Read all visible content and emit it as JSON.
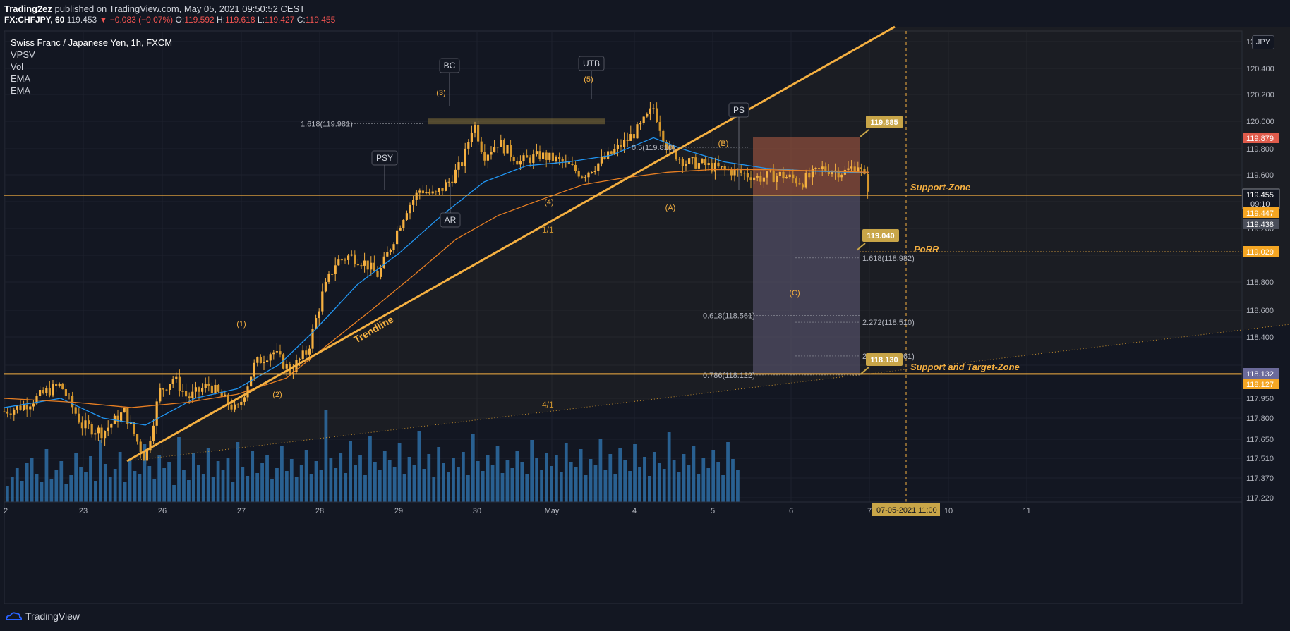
{
  "header": {
    "publisher": "Trading2ez",
    "published_text": "published on TradingView.com, May 05, 2021 09:50:52 CEST",
    "symbol": "FX:CHFJPY, 60",
    "last": "119.453",
    "change": "−0.083 (−0.07%)",
    "open_label": "O:",
    "open": "119.592",
    "high_label": "H:",
    "high": "119.618",
    "low_label": "L:",
    "low": "119.427",
    "close_label": "C:",
    "close": "119.455"
  },
  "legend": {
    "title": "Swiss Franc / Japanese Yen, 1h, FXCM",
    "indicators": [
      "VPSV",
      "Vol",
      "EMA",
      "EMA"
    ]
  },
  "currency": "JPY",
  "footer": {
    "brand": "TradingView"
  },
  "colors": {
    "background": "#131722",
    "accent": "#f9c23c",
    "up": "#f5b041",
    "down": "#d4962c",
    "ema_fast": "#2196f3",
    "ema_slow": "#e67e22",
    "volume": "#2e6da4",
    "stop_zone": "#8a4a3e",
    "target_zone": "#4b4a68"
  },
  "chart_data": {
    "type": "candlestick",
    "title": "Swiss Franc / Japanese Yen, 1h, FXCM",
    "xlabel": "",
    "ylabel": "",
    "ylim": [
      117.16,
      120.67
    ],
    "grid": true,
    "y_ticks": [
      "117.220",
      "117.370",
      "117.510",
      "117.650",
      "117.800",
      "117.950",
      "118.100",
      "118.400",
      "118.600",
      "118.800",
      "119.200",
      "119.600",
      "119.800",
      "120.000",
      "120.200",
      "120.400",
      "120.600"
    ],
    "x_ticks": [
      "2",
      "23",
      "26",
      "27",
      "28",
      "29",
      "30",
      "May",
      "4",
      "5",
      "6",
      "7",
      "10",
      "11"
    ],
    "price_path": [
      [
        0,
        117.85
      ],
      [
        30,
        117.9
      ],
      [
        60,
        118.0
      ],
      [
        80,
        118.05
      ],
      [
        110,
        117.75
      ],
      [
        140,
        117.7
      ],
      [
        170,
        117.85
      ],
      [
        200,
        117.5
      ],
      [
        220,
        118.0
      ],
      [
        240,
        118.1
      ],
      [
        260,
        117.95
      ],
      [
        290,
        118.05
      ],
      [
        330,
        117.85
      ],
      [
        355,
        118.2
      ],
      [
        380,
        118.3
      ],
      [
        405,
        118.15
      ],
      [
        430,
        118.3
      ],
      [
        450,
        118.7
      ],
      [
        470,
        118.95
      ],
      [
        490,
        119.0
      ],
      [
        510,
        118.95
      ],
      [
        530,
        118.85
      ],
      [
        550,
        119.1
      ],
      [
        570,
        119.35
      ],
      [
        590,
        119.5
      ],
      [
        610,
        119.45
      ],
      [
        630,
        119.55
      ],
      [
        650,
        119.7
      ],
      [
        665,
        120.0
      ],
      [
        680,
        119.75
      ],
      [
        700,
        119.85
      ],
      [
        730,
        119.7
      ],
      [
        760,
        119.75
      ],
      [
        790,
        119.7
      ],
      [
        820,
        119.6
      ],
      [
        850,
        119.72
      ],
      [
        880,
        119.85
      ],
      [
        900,
        119.95
      ],
      [
        920,
        120.1
      ],
      [
        940,
        119.8
      ],
      [
        965,
        119.7
      ],
      [
        990,
        119.68
      ],
      [
        1010,
        119.65
      ],
      [
        1040,
        119.62
      ],
      [
        1070,
        119.58
      ],
      [
        1100,
        119.6
      ],
      [
        1130,
        119.55
      ],
      [
        1160,
        119.65
      ],
      [
        1190,
        119.62
      ],
      [
        1210,
        119.68
      ],
      [
        1225,
        119.5
      ]
    ],
    "ema_fast_path": [
      [
        0,
        117.88
      ],
      [
        80,
        117.95
      ],
      [
        140,
        117.8
      ],
      [
        200,
        117.75
      ],
      [
        270,
        117.95
      ],
      [
        330,
        118.02
      ],
      [
        390,
        118.2
      ],
      [
        440,
        118.45
      ],
      [
        500,
        118.78
      ],
      [
        560,
        119.02
      ],
      [
        620,
        119.3
      ],
      [
        680,
        119.55
      ],
      [
        740,
        119.67
      ],
      [
        800,
        119.7
      ],
      [
        860,
        119.75
      ],
      [
        920,
        119.88
      ],
      [
        960,
        119.8
      ],
      [
        1020,
        119.7
      ],
      [
        1080,
        119.65
      ],
      [
        1140,
        119.63
      ],
      [
        1200,
        119.62
      ],
      [
        1225,
        119.62
      ]
    ],
    "ema_slow_path": [
      [
        0,
        117.95
      ],
      [
        100,
        117.92
      ],
      [
        180,
        117.88
      ],
      [
        260,
        117.92
      ],
      [
        330,
        117.98
      ],
      [
        400,
        118.1
      ],
      [
        460,
        118.35
      ],
      [
        520,
        118.6
      ],
      [
        580,
        118.85
      ],
      [
        640,
        119.12
      ],
      [
        700,
        119.3
      ],
      [
        760,
        119.42
      ],
      [
        820,
        119.53
      ],
      [
        880,
        119.58
      ],
      [
        940,
        119.62
      ],
      [
        1000,
        119.64
      ],
      [
        1080,
        119.64
      ],
      [
        1160,
        119.63
      ],
      [
        1225,
        119.62
      ]
    ],
    "volume_heights": [
      22,
      35,
      48,
      30,
      55,
      62,
      40,
      28,
      75,
      33,
      45,
      58,
      26,
      38,
      70,
      50,
      42,
      65,
      30,
      88,
      54,
      36,
      47,
      71,
      29,
      60,
      44,
      39,
      82,
      51,
      33,
      66,
      48,
      57,
      24,
      92,
      45,
      31,
      69,
      53,
      40,
      77,
      35,
      58,
      46,
      63,
      28,
      85,
      50,
      37,
      72,
      41,
      55,
      67,
      32,
      48,
      80,
      44,
      61,
      36,
      52,
      74,
      39,
      58,
      45,
      130,
      62,
      48,
      70,
      41,
      86,
      53,
      66,
      38,
      94,
      57,
      45,
      72,
      60,
      49,
      83,
      39,
      64,
      52,
      101,
      47,
      68,
      35,
      78,
      55,
      43,
      62,
      50,
      71,
      38,
      96,
      58,
      44,
      66,
      52,
      80,
      41,
      60,
      48,
      73,
      56,
      39,
      88,
      62,
      45,
      70,
      51,
      67,
      42,
      84,
      57,
      49,
      75,
      38,
      61,
      53,
      90,
      46,
      68,
      40,
      77,
      59,
      44,
      82,
      50,
      64,
      37,
      71,
      55,
      47,
      99,
      60,
      43,
      68,
      52,
      79,
      40,
      63,
      48,
      74,
      56,
      38,
      85,
      61,
      45
    ],
    "horizontal_levels": [
      {
        "price": 119.455,
        "label": "Support-Zone"
      },
      {
        "price": 118.13,
        "label": "Support and Target-Zone"
      },
      {
        "price": 119.029,
        "label": "PoRR"
      }
    ],
    "fib_levels": [
      {
        "label": "1.618(119.981)",
        "price": 119.981
      },
      {
        "label": "0.5(119.810)",
        "price": 119.81
      },
      {
        "label": "1.618(118.982)",
        "price": 118.982
      },
      {
        "label": "0.618(118.561)",
        "price": 118.561
      },
      {
        "label": "2.272(118.510)",
        "price": 118.51
      },
      {
        "label": "2.618(118.261)",
        "price": 118.261
      },
      {
        "label": "0.786(118.122)",
        "price": 118.122
      }
    ],
    "wyckoff_labels": [
      "BC",
      "UTB",
      "PSY",
      "AR",
      "PS"
    ],
    "wave_labels": [
      "(1)",
      "(2)",
      "(3)",
      "(4)",
      "(5)",
      "(4)",
      "(A)",
      "(B)",
      "(C)"
    ],
    "drawing_labels": {
      "trendline": "Trendline",
      "fan_1": "1/1",
      "fan_4": "4/1"
    },
    "callouts": [
      {
        "label": "119.885",
        "price": 119.885
      },
      {
        "label": "119.040",
        "price": 119.04
      },
      {
        "label": "118.130",
        "price": 118.13
      }
    ],
    "axis_badges": [
      {
        "label": "119.879",
        "price": 119.879,
        "color": "#e05b4b"
      },
      {
        "label": "119.455",
        "price": 119.455,
        "color": "#131722",
        "sub": "09:10"
      },
      {
        "label": "119.447",
        "price": 119.447,
        "color": "#f5a623"
      },
      {
        "label": "119.438",
        "price": 119.438,
        "color": "#4a4e5a"
      },
      {
        "label": "119.029",
        "price": 119.029,
        "color": "#f5a623"
      },
      {
        "label": "118.132",
        "price": 118.132,
        "color": "#6b6a9a"
      },
      {
        "label": "118.127",
        "price": 118.127,
        "color": "#f5a623"
      }
    ],
    "time_badge": {
      "date": "07-05-2021",
      "time": "11:00"
    }
  }
}
